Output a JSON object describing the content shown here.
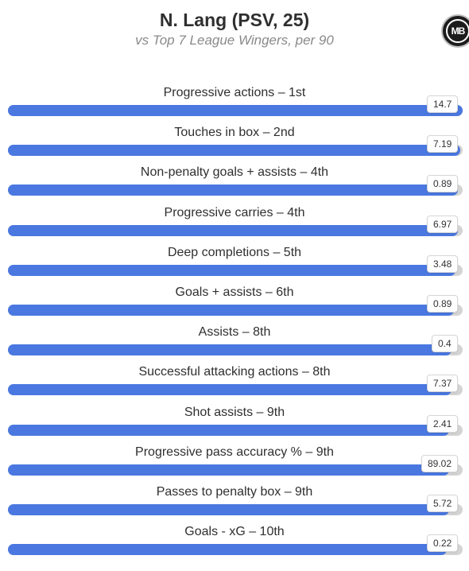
{
  "header": {
    "title": "N. Lang (PSV, 25)",
    "subtitle": "vs Top 7 League Wingers, per 90",
    "logo_text": "MB"
  },
  "colors": {
    "bar_fill": "#4a78e0",
    "bar_track": "#d4d4d4"
  },
  "chart_data": {
    "type": "bar",
    "orientation": "horizontal",
    "title": "N. Lang (PSV, 25)",
    "subtitle": "vs Top 7 League Wingers, per 90",
    "categories": [
      "Progressive actions – 1st",
      "Touches in box – 2nd",
      "Non-penalty goals + assists – 4th",
      "Progressive carries – 4th",
      "Deep completions – 5th",
      "Goals + assists – 6th",
      "Assists – 8th",
      "Successful attacking actions – 8th",
      "Shot assists – 9th",
      "Progressive pass accuracy % – 9th",
      "Passes to penalty box – 9th",
      "Goals - xG – 10th"
    ],
    "values": [
      "14.7",
      "7.19",
      "0.89",
      "6.97",
      "3.48",
      "0.89",
      "0.4",
      "7.37",
      "2.41",
      "89.02",
      "5.72",
      "0.22"
    ],
    "percentile_fill": [
      1.0,
      0.995,
      0.99,
      0.99,
      0.985,
      0.98,
      0.975,
      0.975,
      0.97,
      0.97,
      0.97,
      0.965
    ],
    "grid": false,
    "legend": "none"
  }
}
